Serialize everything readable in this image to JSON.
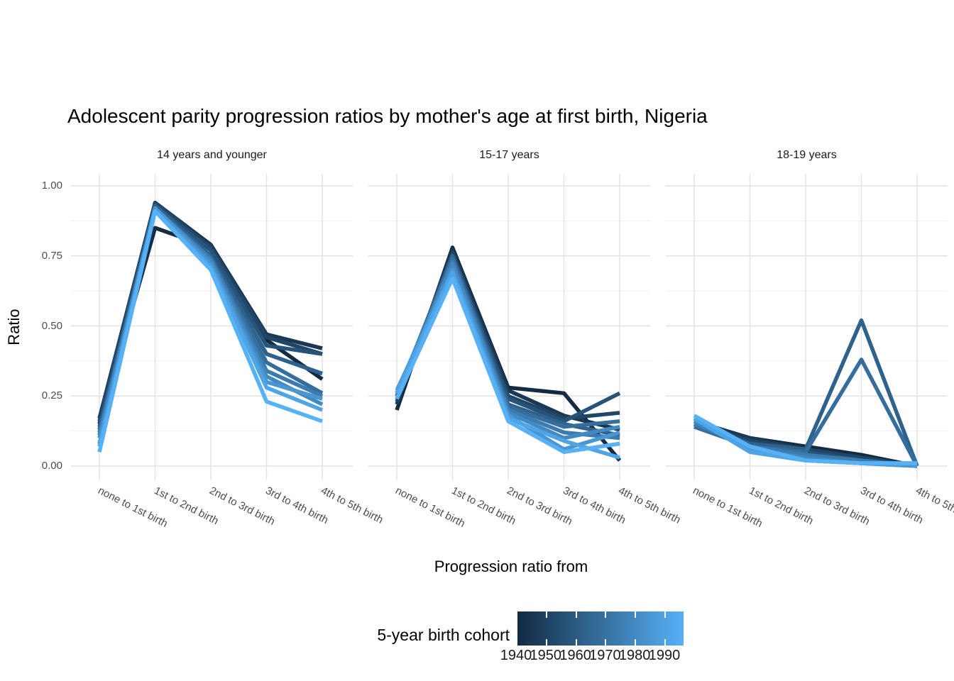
{
  "title": "Adolescent parity progression ratios by mother's age at first birth,  Nigeria",
  "y_axis": {
    "label": "Ratio",
    "tick_labels": [
      "1.00",
      "0.75",
      "0.50",
      "0.25",
      "0.00"
    ]
  },
  "x_axis": {
    "label": "Progression ratio from",
    "categories": [
      "none to 1st birth",
      "1st to 2nd birth",
      "2nd to 3rd birth",
      "3rd to 4th birth",
      "4th to 5th birth"
    ]
  },
  "legend": {
    "title": "5-year birth cohort",
    "tick_labels": [
      "1940",
      "1950",
      "1960",
      "1970",
      "1980",
      "1990"
    ],
    "min": 1940,
    "max": 1990
  },
  "colors": {
    "background": "#ffffff",
    "grid_major": "#e2e2e2",
    "grid_minor": "#f0f0f0",
    "axis_text": "#4d4d4d",
    "strip_text": "#1a1a1a",
    "title_text": "#000000",
    "scale_low": "#132B43",
    "scale_high": "#56B1F7",
    "legend_notch": "#ffffff"
  },
  "chart_data": {
    "type": "line",
    "title": "Adolescent parity progression ratios by mother's age at first birth,  Nigeria",
    "xlabel": "Progression ratio from",
    "ylabel": "Ratio",
    "ylim": [
      0,
      1
    ],
    "y_ticks": [
      0,
      0.25,
      0.5,
      0.75,
      1.0
    ],
    "y_minor_ticks": [
      0.125,
      0.375,
      0.625,
      0.875
    ],
    "grid": true,
    "categories": [
      "none to 1st birth",
      "1st to 2nd birth",
      "2nd to 3rd birth",
      "3rd to 4th birth",
      "4th to 5th birth"
    ],
    "color_scale": {
      "low": "#132B43",
      "high": "#56B1F7",
      "legend_title": "5-year birth cohort",
      "legend_position": "bottom",
      "domain": [
        1940,
        1990
      ]
    },
    "facets": [
      {
        "label": "14 years and younger",
        "series": [
          {
            "name": "1940",
            "cohort": 1940,
            "values": [
              0.15,
              0.85,
              0.78,
              0.45,
              0.31
            ]
          },
          {
            "name": "1945",
            "cohort": 1945,
            "values": [
              0.17,
              0.94,
              0.79,
              0.47,
              0.42
            ]
          },
          {
            "name": "1950",
            "cohort": 1950,
            "values": [
              0.16,
              0.94,
              0.78,
              0.46,
              0.4
            ]
          },
          {
            "name": "1955",
            "cohort": 1955,
            "values": [
              0.14,
              0.93,
              0.77,
              0.43,
              0.4
            ]
          },
          {
            "name": "1960",
            "cohort": 1960,
            "values": [
              0.13,
              0.93,
              0.75,
              0.4,
              0.33
            ]
          },
          {
            "name": "1965",
            "cohort": 1965,
            "values": [
              0.12,
              0.92,
              0.74,
              0.37,
              0.26
            ]
          },
          {
            "name": "1970",
            "cohort": 1970,
            "values": [
              0.11,
              0.92,
              0.74,
              0.34,
              0.25
            ]
          },
          {
            "name": "1975",
            "cohort": 1975,
            "values": [
              0.1,
              0.92,
              0.73,
              0.32,
              0.22
            ]
          },
          {
            "name": "1980",
            "cohort": 1980,
            "values": [
              0.08,
              0.92,
              0.72,
              0.3,
              0.24
            ]
          },
          {
            "name": "1985",
            "cohort": 1985,
            "values": [
              0.07,
              0.91,
              0.71,
              0.28,
              0.2
            ]
          },
          {
            "name": "1990",
            "cohort": 1990,
            "values": [
              0.05,
              0.91,
              0.7,
              0.23,
              0.16
            ]
          }
        ]
      },
      {
        "label": "15-17 years",
        "series": [
          {
            "name": "1940",
            "cohort": 1940,
            "values": [
              0.2,
              0.78,
              0.28,
              0.26,
              0.02
            ]
          },
          {
            "name": "1945",
            "cohort": 1945,
            "values": [
              0.22,
              0.77,
              0.27,
              0.18,
              0.13
            ]
          },
          {
            "name": "1950",
            "cohort": 1950,
            "values": [
              0.23,
              0.76,
              0.25,
              0.17,
              0.19
            ]
          },
          {
            "name": "1955",
            "cohort": 1955,
            "values": [
              0.24,
              0.75,
              0.24,
              0.16,
              0.26
            ]
          },
          {
            "name": "1960",
            "cohort": 1960,
            "values": [
              0.25,
              0.75,
              0.22,
              0.15,
              0.11
            ]
          },
          {
            "name": "1965",
            "cohort": 1965,
            "values": [
              0.25,
              0.74,
              0.21,
              0.14,
              0.16
            ]
          },
          {
            "name": "1970",
            "cohort": 1970,
            "values": [
              0.26,
              0.73,
              0.2,
              0.12,
              0.1
            ]
          },
          {
            "name": "1975",
            "cohort": 1975,
            "values": [
              0.26,
              0.72,
              0.19,
              0.1,
              0.14
            ]
          },
          {
            "name": "1980",
            "cohort": 1980,
            "values": [
              0.27,
              0.7,
              0.18,
              0.06,
              0.12
            ]
          },
          {
            "name": "1985",
            "cohort": 1985,
            "values": [
              0.26,
              0.69,
              0.17,
              0.09,
              0.03
            ]
          },
          {
            "name": "1990",
            "cohort": 1990,
            "values": [
              0.24,
              0.67,
              0.16,
              0.05,
              0.08
            ]
          }
        ]
      },
      {
        "label": "18-19 years",
        "series": [
          {
            "name": "1940",
            "cohort": 1940,
            "values": [
              0.16,
              0.1,
              0.07,
              0.04,
              0.0
            ]
          },
          {
            "name": "1945",
            "cohort": 1945,
            "values": [
              0.16,
              0.1,
              0.06,
              0.02,
              0.0
            ]
          },
          {
            "name": "1950",
            "cohort": 1950,
            "values": [
              0.15,
              0.09,
              0.06,
              0.03,
              0.0
            ]
          },
          {
            "name": "1955",
            "cohort": 1955,
            "values": [
              0.15,
              0.08,
              0.05,
              0.02,
              0.0
            ]
          },
          {
            "name": "1960",
            "cohort": 1960,
            "values": [
              0.15,
              0.08,
              0.06,
              0.52,
              0.0
            ]
          },
          {
            "name": "1965",
            "cohort": 1965,
            "values": [
              0.14,
              0.07,
              0.05,
              0.38,
              0.0
            ]
          },
          {
            "name": "1970",
            "cohort": 1970,
            "values": [
              0.15,
              0.07,
              0.04,
              0.02,
              0.0
            ]
          },
          {
            "name": "1975",
            "cohort": 1975,
            "values": [
              0.16,
              0.06,
              0.03,
              0.01,
              0.0
            ]
          },
          {
            "name": "1980",
            "cohort": 1980,
            "values": [
              0.17,
              0.06,
              0.02,
              0.01,
              0.0
            ]
          },
          {
            "name": "1985",
            "cohort": 1985,
            "values": [
              0.17,
              0.05,
              0.02,
              0.01,
              0.01
            ]
          },
          {
            "name": "1990",
            "cohort": 1990,
            "values": [
              0.18,
              0.07,
              0.02,
              0.01,
              0.01
            ]
          }
        ]
      }
    ]
  }
}
